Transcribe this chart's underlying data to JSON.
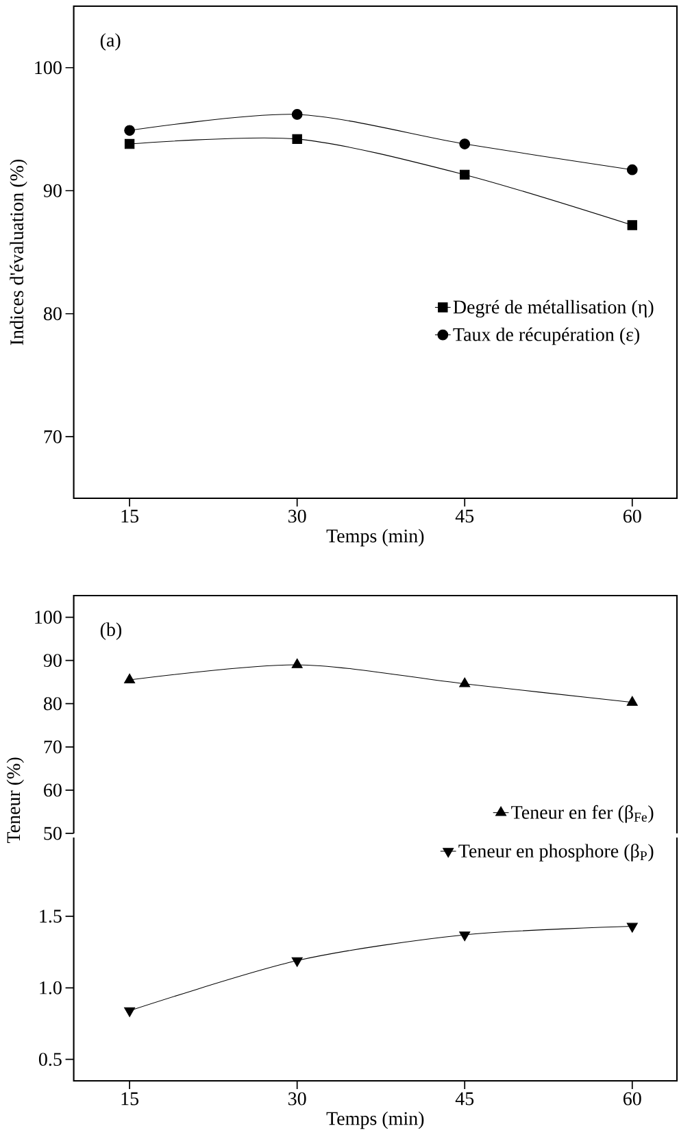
{
  "chart_data": [
    {
      "type": "line",
      "annotations": [
        "(a)"
      ],
      "xlabel": "Temps (min)",
      "ylabel": "Indices d'évaluation (%)",
      "x": [
        15,
        30,
        45,
        60
      ],
      "xlim": [
        10,
        64
      ],
      "ylim": [
        65,
        105
      ],
      "xticks": [
        15,
        30,
        45,
        60
      ],
      "yticks": [
        70,
        80,
        90,
        100
      ],
      "legend": "right",
      "series": [
        {
          "name": "Degré de métallisation (η)",
          "color": "#000000",
          "marker": "square",
          "values": [
            93.8,
            94.2,
            91.3,
            87.2
          ]
        },
        {
          "name": "Taux de récupération (ε)",
          "color": "#000000",
          "marker": "circle",
          "values": [
            94.9,
            96.2,
            93.8,
            91.7
          ]
        }
      ]
    },
    {
      "type": "line",
      "annotations": [
        "(b)"
      ],
      "ylabel": "Teneur (%)",
      "x": [
        15,
        30,
        45,
        60
      ],
      "xlim": [
        10,
        64
      ],
      "ylim": [
        50,
        105
      ],
      "yticks": [
        50,
        60,
        70,
        80,
        90,
        100
      ],
      "tick_labels": "y",
      "legend": "bottom right",
      "series": [
        {
          "name": "Teneur en fer (β$_{Fe}$)",
          "color": "#000000",
          "marker": "triangle",
          "values": [
            85.5,
            89.0,
            84.6,
            80.3
          ]
        }
      ]
    },
    {
      "type": "line",
      "xlabel": "Temps (min)",
      "x": [
        15,
        30,
        45,
        60
      ],
      "xlim": [
        10,
        64
      ],
      "ylim": [
        0.35,
        2.05
      ],
      "xticks": [
        15,
        30,
        45,
        60
      ],
      "yticks": [
        0.5,
        {
          "value": 1.0,
          "label": "1.0"
        },
        1.5
      ],
      "legend": "top right",
      "series": [
        {
          "name": "Teneur en phosphore (β$_{P}$)",
          "color": "#000000",
          "marker": "triangle-down",
          "values": [
            0.84,
            1.19,
            1.37,
            1.43
          ]
        }
      ]
    }
  ]
}
